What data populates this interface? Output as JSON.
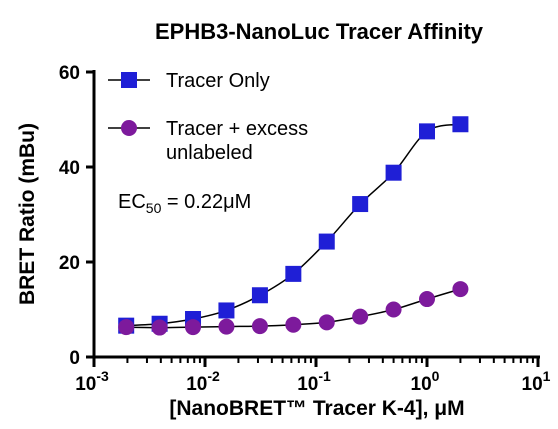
{
  "chart_data": {
    "type": "scatter",
    "title": "EPHB3-NanoLuc Tracer Affinity",
    "xlabel": "[NanoBRET™ Tracer K-4], μM",
    "ylabel": "BRET Ratio (mBu)",
    "x_scale": "log",
    "xlim": [
      0.001,
      10
    ],
    "ylim": [
      0,
      60
    ],
    "x_ticks": [
      {
        "base": "10",
        "exp": "-3"
      },
      {
        "base": "10",
        "exp": "-2"
      },
      {
        "base": "10",
        "exp": "-1"
      },
      {
        "base": "10",
        "exp": "0"
      },
      {
        "base": "10",
        "exp": "1"
      }
    ],
    "y_ticks": [
      "0",
      "20",
      "40",
      "60"
    ],
    "legend_position": "top-left",
    "fit_curves": true,
    "series": [
      {
        "name": "Tracer Only",
        "marker": "square",
        "color": "#1f1fd6",
        "x": [
          0.00195,
          0.0039,
          0.0078,
          0.0156,
          0.03125,
          0.0625,
          0.125,
          0.25,
          0.5,
          1.0,
          2.0
        ],
        "y": [
          6.6,
          7.0,
          8.0,
          9.8,
          13.0,
          17.5,
          24.3,
          32.2,
          38.8,
          47.5,
          49.0
        ]
      },
      {
        "name": "Tracer + excess unlabeled",
        "name_lines": [
          "Tracer + excess",
          "unlabeled"
        ],
        "marker": "circle",
        "color": "#7d1a9c",
        "x": [
          0.00195,
          0.0039,
          0.0078,
          0.0156,
          0.03125,
          0.0625,
          0.125,
          0.25,
          0.5,
          1.0,
          2.0
        ],
        "y": [
          6.3,
          6.2,
          6.3,
          6.4,
          6.5,
          6.8,
          7.3,
          8.5,
          10.0,
          12.2,
          14.3
        ]
      }
    ],
    "annotation": {
      "prefix": "EC",
      "subscript": "50",
      "suffix": " = 0.22μM"
    }
  }
}
